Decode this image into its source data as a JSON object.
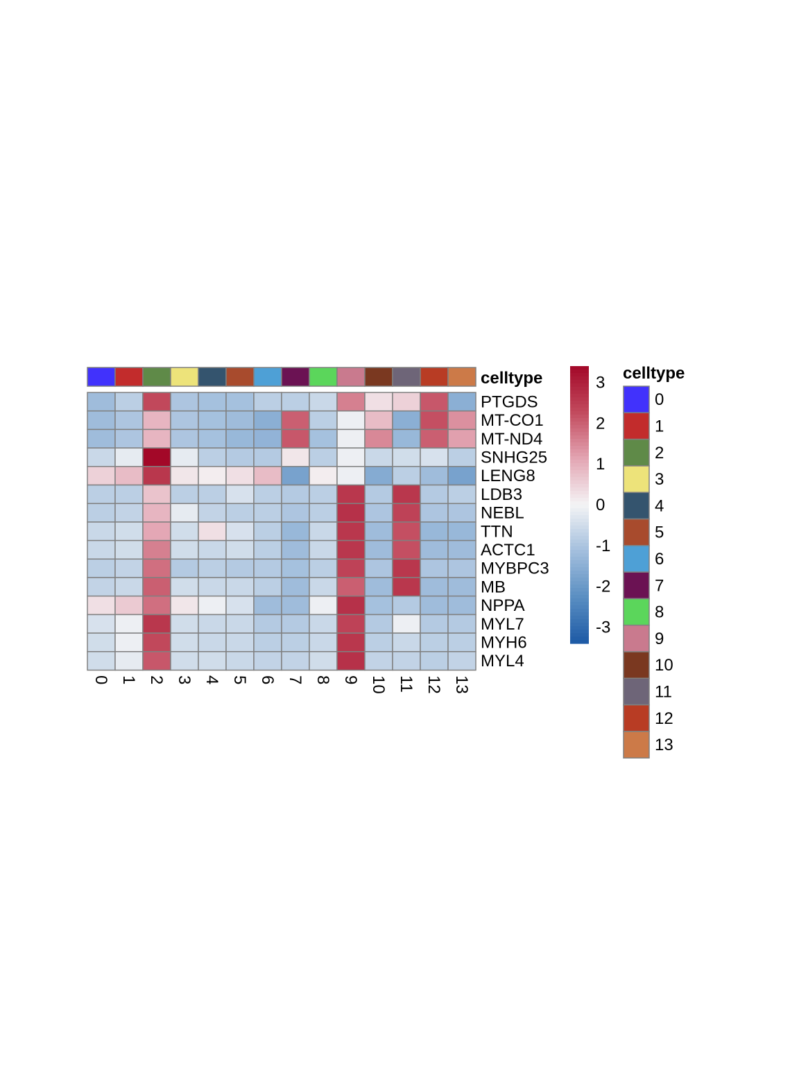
{
  "chart_data": {
    "type": "heatmap",
    "annotation_title": "celltype",
    "legend_title": "celltype",
    "columns": [
      "0",
      "1",
      "2",
      "3",
      "4",
      "5",
      "6",
      "7",
      "8",
      "9",
      "10",
      "11",
      "12",
      "13"
    ],
    "rows": [
      "PTGDS",
      "MT-CO1",
      "MT-ND4",
      "SNHG25",
      "LENG8",
      "LDB3",
      "NEBL",
      "TTN",
      "ACTC1",
      "MYBPC3",
      "MB",
      "NPPA",
      "MYL7",
      "MYH6",
      "MYL4"
    ],
    "values": [
      [
        -1.2,
        -0.8,
        2.3,
        -1.0,
        -1.1,
        -1.1,
        -0.8,
        -0.8,
        -0.6,
        1.6,
        0.3,
        0.5,
        2.1,
        -1.5
      ],
      [
        -1.2,
        -1.0,
        0.9,
        -1.0,
        -1.1,
        -1.2,
        -1.5,
        2.0,
        -0.8,
        -0.1,
        0.8,
        -1.5,
        2.2,
        1.4
      ],
      [
        -1.2,
        -1.0,
        0.9,
        -1.0,
        -1.1,
        -1.3,
        -1.4,
        2.1,
        -1.1,
        -0.1,
        1.5,
        -1.3,
        2.0,
        1.2
      ],
      [
        -0.6,
        -0.2,
        3.4,
        -0.2,
        -0.8,
        -0.9,
        -0.9,
        0.2,
        -0.8,
        -0.1,
        -0.6,
        -0.5,
        -0.4,
        -0.8
      ],
      [
        0.5,
        0.8,
        2.6,
        0.2,
        0.1,
        0.3,
        0.8,
        -1.8,
        0.1,
        -0.1,
        -1.6,
        -0.8,
        -1.2,
        -1.8
      ],
      [
        -0.8,
        -0.8,
        0.7,
        -0.8,
        -0.8,
        -0.4,
        -0.8,
        -0.9,
        -0.8,
        2.6,
        -0.9,
        2.6,
        -0.9,
        -0.8
      ],
      [
        -0.8,
        -0.7,
        0.9,
        -0.2,
        -0.7,
        -0.8,
        -0.8,
        -1.0,
        -0.8,
        2.7,
        -1.0,
        2.4,
        -1.0,
        -1.0
      ],
      [
        -0.6,
        -0.5,
        1.1,
        -0.5,
        0.3,
        -0.4,
        -0.8,
        -1.3,
        -0.6,
        2.6,
        -1.2,
        2.2,
        -1.3,
        -1.3
      ],
      [
        -0.6,
        -0.5,
        1.6,
        -0.5,
        -0.6,
        -0.5,
        -0.8,
        -1.2,
        -0.6,
        2.6,
        -1.2,
        2.2,
        -1.2,
        -1.2
      ],
      [
        -0.8,
        -0.7,
        1.8,
        -0.9,
        -0.8,
        -0.9,
        -0.9,
        -1.1,
        -0.8,
        2.4,
        -1.0,
        2.6,
        -1.0,
        -1.0
      ],
      [
        -0.7,
        -0.6,
        2.0,
        -0.5,
        -0.6,
        -0.6,
        -0.8,
        -1.2,
        -0.6,
        2.0,
        -1.2,
        2.6,
        -1.2,
        -1.2
      ],
      [
        0.3,
        0.6,
        1.8,
        0.2,
        -0.1,
        -0.4,
        -1.2,
        -1.2,
        -0.1,
        2.7,
        -1.1,
        -0.9,
        -1.2,
        -1.2
      ],
      [
        -0.4,
        -0.1,
        2.6,
        -0.5,
        -0.6,
        -0.6,
        -0.9,
        -0.9,
        -0.6,
        2.4,
        -0.9,
        -0.1,
        -0.9,
        -0.9
      ],
      [
        -0.5,
        -0.1,
        2.3,
        -0.5,
        -0.6,
        -0.6,
        -0.8,
        -0.8,
        -0.6,
        2.6,
        -0.8,
        -0.6,
        -0.8,
        -0.8
      ],
      [
        -0.5,
        -0.2,
        2.1,
        -0.5,
        -0.5,
        -0.6,
        -0.7,
        -0.7,
        -0.5,
        2.7,
        -0.7,
        -0.7,
        -0.8,
        -0.7
      ]
    ],
    "celltype_colors": [
      "#4132fc",
      "#c22c2c",
      "#5f8a48",
      "#ede37a",
      "#34546e",
      "#a84b2d",
      "#4ea0d6",
      "#6b1253",
      "#5bd65b",
      "#c97a8e",
      "#7a3820",
      "#6e6578",
      "#b83c24",
      "#cc7a48"
    ],
    "color_scale": {
      "range": [
        -3.4,
        3.4
      ],
      "ticks": [
        3,
        2,
        1,
        0,
        -1,
        -2,
        -3
      ],
      "tick_labels": [
        "3",
        "2",
        "1",
        "0",
        "-1",
        "-2",
        "-3"
      ],
      "colors": [
        "#1c59a5",
        "#5a8ec2",
        "#a3bfdd",
        "#f4f4f5",
        "#e3a5b3",
        "#c24a5d",
        "#a30828"
      ]
    }
  }
}
